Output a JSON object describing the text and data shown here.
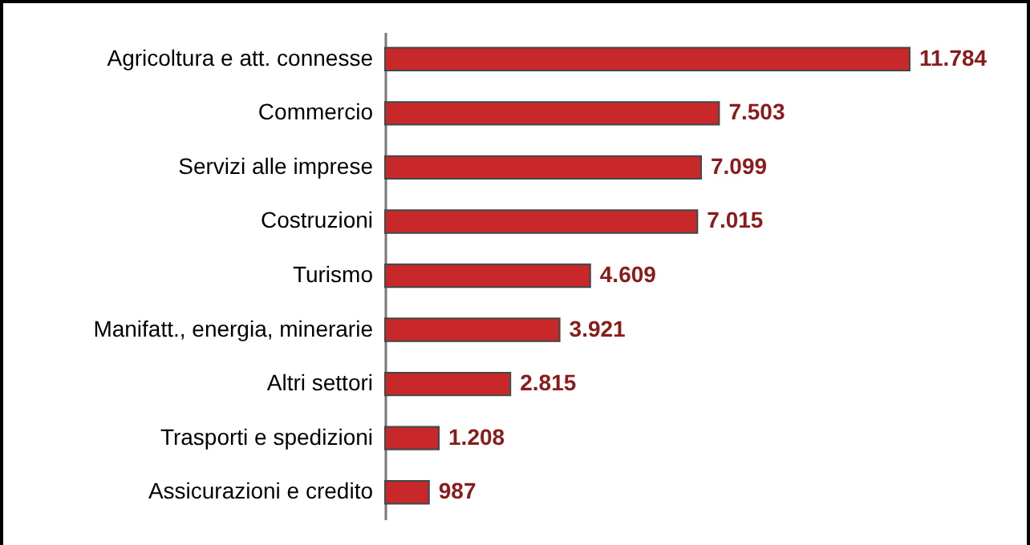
{
  "chart_data": {
    "type": "bar",
    "orientation": "horizontal",
    "categories": [
      "Agricoltura e att. connesse",
      "Commercio",
      "Servizi alle imprese",
      "Costruzioni",
      "Turismo",
      "Manifatt., energia, minerarie",
      "Altri settori",
      "Trasporti e spedizioni",
      "Assicurazioni e credito"
    ],
    "values": [
      11784,
      7503,
      7099,
      7015,
      4609,
      3921,
      2815,
      1208,
      987
    ],
    "value_labels": [
      "11.784",
      "7.503",
      "7.099",
      "7.015",
      "4.609",
      "3.921",
      "2.815",
      "1.208",
      "987"
    ],
    "color": "#c8282a"
  }
}
